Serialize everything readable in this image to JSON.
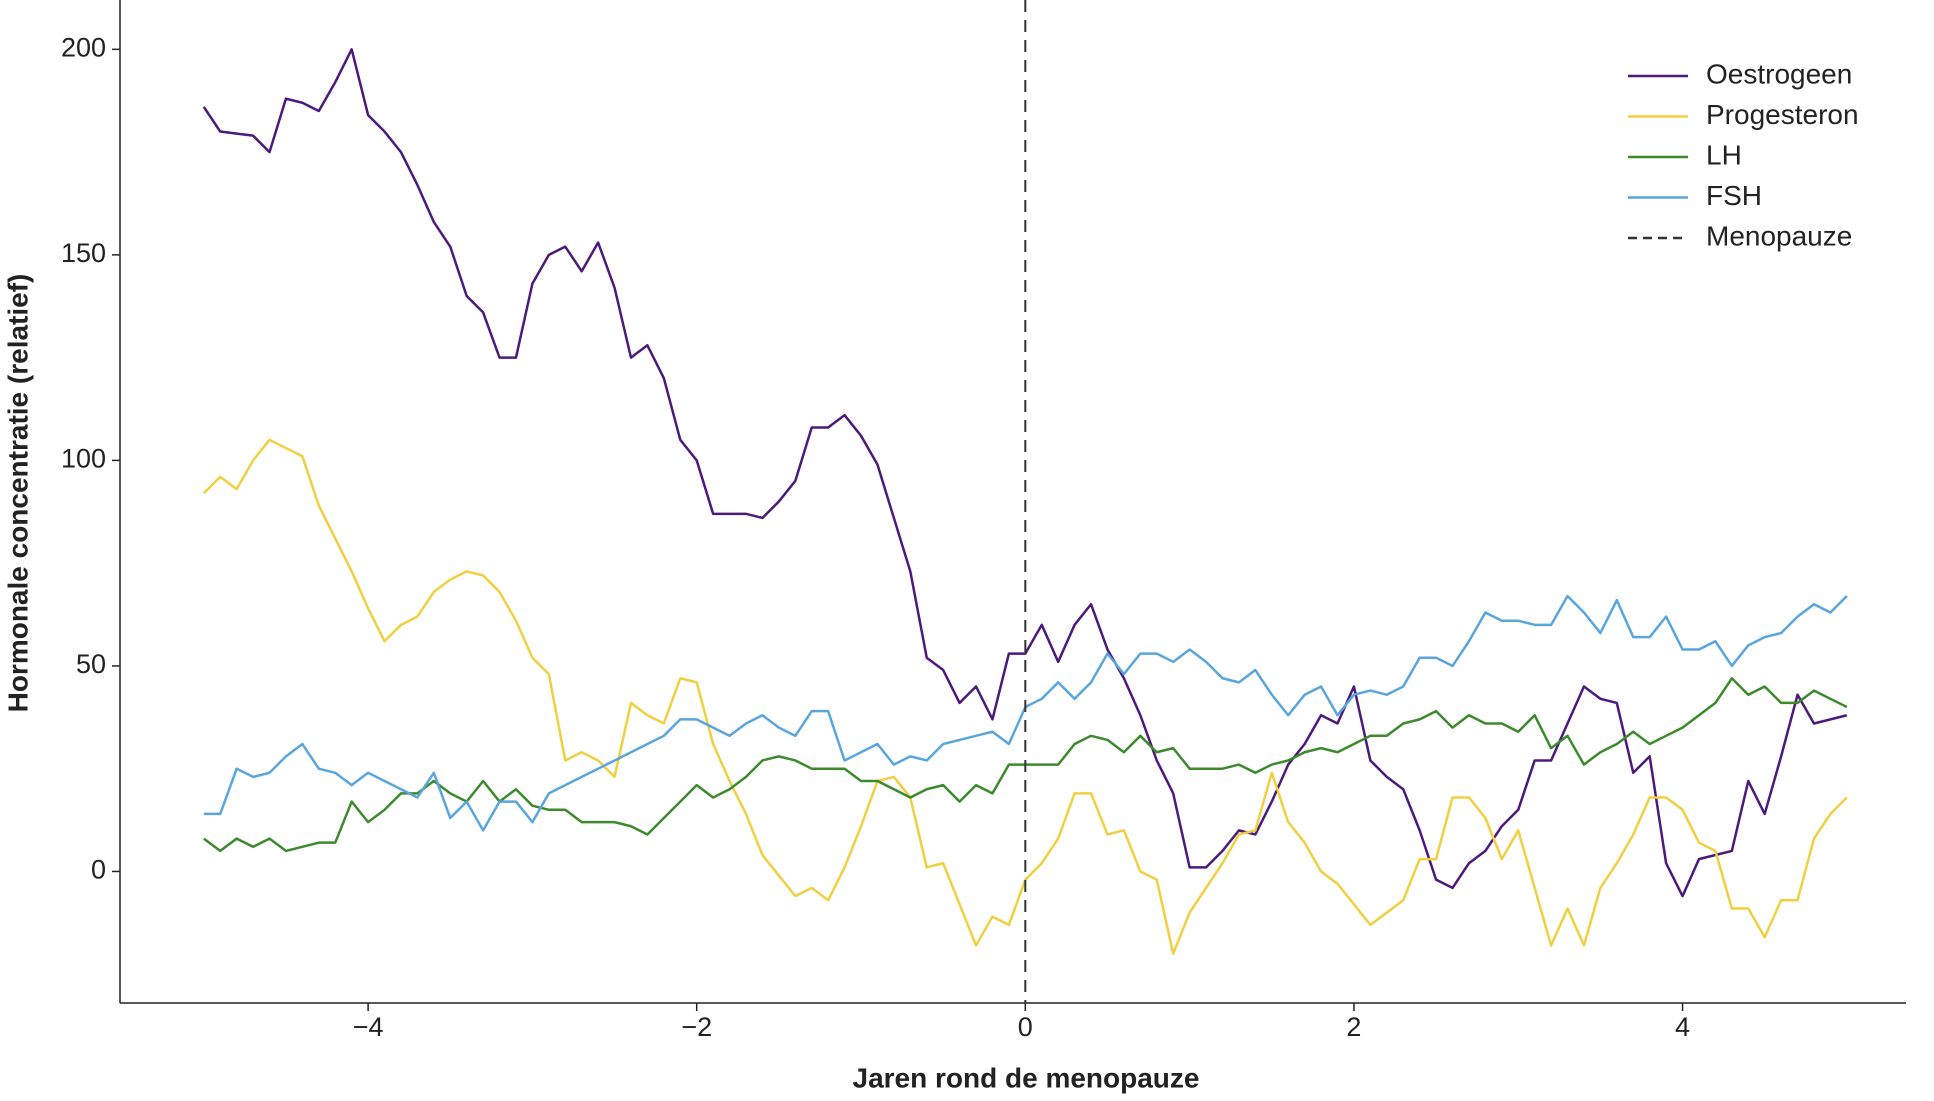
{
  "chart_data": {
    "type": "line",
    "x_label": "Jaren rond de menopauze",
    "y_label": "Hormonale concentratie (relatief)",
    "x": [
      -5,
      -4.9,
      -4.8,
      -4.7,
      -4.6,
      -4.5,
      -4.4,
      -4.3,
      -4.2,
      -4.1,
      -4,
      -3.9,
      -3.8,
      -3.7,
      -3.6,
      -3.5,
      -3.4,
      -3.3,
      -3.2,
      -3.1,
      -3,
      -2.9,
      -2.8,
      -2.7,
      -2.6,
      -2.5,
      -2.4,
      -2.3,
      -2.2,
      -2.1,
      -2,
      -1.9,
      -1.8,
      -1.7,
      -1.6,
      -1.5,
      -1.4,
      -1.3,
      -1.2,
      -1.1,
      -1,
      -0.9,
      -0.8,
      -0.7,
      -0.6,
      -0.5,
      -0.4,
      -0.3,
      -0.2,
      -0.1,
      0,
      0.1,
      0.2,
      0.3,
      0.4,
      0.5,
      0.6,
      0.7,
      0.8,
      0.9,
      1,
      1.1,
      1.2,
      1.3,
      1.4,
      1.5,
      1.6,
      1.7,
      1.8,
      1.9,
      2,
      2.1,
      2.2,
      2.3,
      2.4,
      2.5,
      2.6,
      2.7,
      2.8,
      2.9,
      3,
      3.1,
      3.2,
      3.3,
      3.4,
      3.5,
      3.6,
      3.7,
      3.8,
      3.9,
      4,
      4.1,
      4.2,
      4.3,
      4.4,
      4.5,
      4.6,
      4.7,
      4.8,
      4.9,
      5
    ],
    "series": [
      {
        "name": "Oestrogeen",
        "color": "#4b1a7a",
        "values": [
          186,
          180,
          179.5,
          179,
          175,
          188,
          187,
          185,
          192,
          200,
          184,
          180,
          175,
          167,
          158,
          152,
          140,
          136,
          125,
          125,
          143,
          150,
          152,
          146,
          153,
          142,
          125,
          128,
          120,
          105,
          100,
          87,
          87,
          87,
          86,
          90,
          95,
          108,
          108,
          111,
          106,
          99,
          86,
          73,
          52,
          49,
          41,
          45,
          37,
          53,
          53,
          60,
          51,
          60,
          65,
          54,
          47,
          38,
          27,
          19,
          1,
          1,
          5,
          10,
          9,
          17,
          26,
          31,
          38,
          36,
          45,
          27,
          23,
          20,
          10,
          -2,
          -4,
          2,
          5,
          11,
          15,
          27,
          27,
          36,
          45,
          42,
          41,
          24,
          28,
          2,
          -6,
          3,
          4,
          5,
          22,
          14,
          28,
          43,
          36,
          37,
          38
        ]
      },
      {
        "name": "Progesteron",
        "color": "#f0d040",
        "values": [
          92,
          96,
          93,
          100,
          105,
          103,
          101,
          89,
          81,
          73,
          64,
          56,
          60,
          62,
          68,
          71,
          73,
          72,
          68,
          61,
          52,
          48,
          27,
          29,
          27,
          23,
          41,
          38,
          36,
          47,
          46,
          31,
          22,
          14,
          4,
          -1,
          -6,
          -4,
          -7,
          1,
          11,
          22,
          23,
          18,
          1,
          2,
          -8,
          -18,
          -11,
          -13,
          -2,
          2,
          8,
          19,
          19,
          9,
          10,
          0,
          -2,
          -20,
          -10,
          -4,
          2,
          9,
          10,
          24,
          12,
          7,
          0,
          -3,
          -8,
          -13,
          -10,
          -7,
          3,
          3,
          18,
          18,
          13,
          3,
          10,
          -4,
          -18,
          -9,
          -18,
          -4,
          2,
          9,
          18,
          18,
          15,
          7,
          5,
          -9,
          -9,
          -16,
          -7,
          -7,
          8,
          14,
          18
        ]
      },
      {
        "name": "LH",
        "color": "#3d8a2e",
        "values": [
          8,
          5,
          8,
          6,
          8,
          5,
          6,
          7,
          7,
          17,
          12,
          15,
          19,
          19,
          22,
          19,
          17,
          22,
          17,
          20,
          16,
          15,
          15,
          12,
          12,
          12,
          11,
          9,
          13,
          17,
          21,
          18,
          20,
          23,
          27,
          28,
          27,
          25,
          25,
          25,
          22,
          22,
          20,
          18,
          20,
          21,
          17,
          21,
          19,
          26,
          26,
          26,
          26,
          31,
          33,
          32,
          29,
          33,
          29,
          30,
          25,
          25,
          25,
          26,
          24,
          26,
          27,
          29,
          30,
          29,
          31,
          33,
          33,
          36,
          37,
          39,
          35,
          38,
          36,
          36,
          34,
          38,
          30,
          33,
          26,
          29,
          31,
          34,
          31,
          33,
          35,
          38,
          41,
          47,
          43,
          45,
          41,
          41,
          44,
          42,
          40
        ]
      },
      {
        "name": "FSH",
        "color": "#5aa5dc",
        "values": [
          14,
          14,
          25,
          23,
          24,
          28,
          31,
          25,
          24,
          21,
          24,
          22,
          20,
          18,
          24,
          13,
          17,
          10,
          17,
          17,
          12,
          19,
          21,
          23,
          25,
          27,
          29,
          31,
          33,
          37,
          37,
          35,
          33,
          36,
          38,
          35,
          33,
          39,
          39,
          27,
          29,
          31,
          26,
          28,
          27,
          31,
          32,
          33,
          34,
          31,
          40,
          42,
          46,
          42,
          46,
          53,
          48,
          53,
          53,
          51,
          54,
          51,
          47,
          46,
          49,
          43,
          38,
          43,
          45,
          38,
          43,
          44,
          43,
          45,
          52,
          52,
          50,
          56,
          63,
          61,
          61,
          60,
          60,
          67,
          63,
          58,
          66,
          57,
          57,
          62,
          54,
          54,
          56,
          50,
          55,
          57,
          58,
          62,
          65,
          63,
          67
        ]
      }
    ],
    "vline": {
      "name": "Menopauze",
      "x": 0,
      "color": "#333333"
    },
    "xlim": [
      -5.51,
      5.36
    ],
    "ylim": [
      -32,
      212
    ],
    "xticks": [
      {
        "value": -4,
        "label": "−4"
      },
      {
        "value": -2,
        "label": "−2"
      },
      0,
      2,
      4
    ],
    "yticks": [
      0,
      50,
      100,
      150,
      200
    ],
    "grid": false,
    "legend": "upper right"
  }
}
